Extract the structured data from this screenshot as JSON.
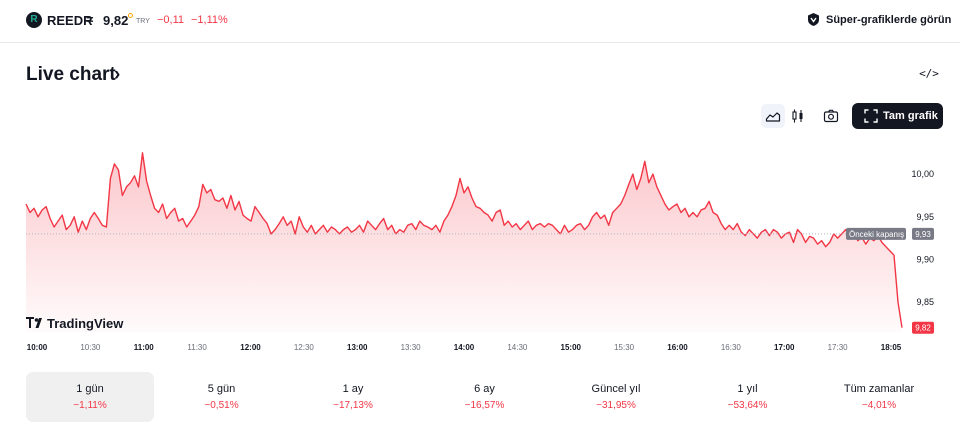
{
  "header": {
    "symbol_logo": "R",
    "symbol": "REEDR",
    "separator": "=",
    "price": "9,82",
    "currency": "TRY",
    "change": "−0,11",
    "change_percent": "−1,11%",
    "super_charts_label": "Süper-grafiklerde görün"
  },
  "section": {
    "title": "Live chart",
    "title_chevron": "›",
    "embed_icon": "</>"
  },
  "toolbar": {
    "fullscreen_label": "Tam grafik",
    "icons": [
      "area-chart-icon",
      "candles-icon",
      "camera-icon",
      "fullscreen-icon"
    ]
  },
  "colors": {
    "line": "#f23645",
    "negative": "#f23645",
    "accent_dark": "#131722"
  },
  "chart_data": {
    "type": "area",
    "watermark": "TradingView",
    "x_ticks": [
      "10:00",
      "10:30",
      "11:00",
      "11:30",
      "12:00",
      "12:30",
      "13:00",
      "13:30",
      "14:00",
      "14:30",
      "15:00",
      "15:30",
      "16:00",
      "16:30",
      "17:00",
      "17:30",
      "18:05"
    ],
    "x_ticks_bold": [
      "10:00",
      "11:00",
      "12:00",
      "13:00",
      "14:00",
      "15:00",
      "16:00",
      "17:00",
      "18:05"
    ],
    "y_ticks": [
      "10,00",
      "9,95",
      "9,90",
      "9,85"
    ],
    "ylim": [
      9.815,
      10.04
    ],
    "previous_close": 9.93,
    "previous_close_label": "Önceki kapanış",
    "previous_close_value": "9,93",
    "last_value": 9.82,
    "last_value_label": "9,82",
    "series": [
      {
        "values": [
          9.965,
          9.955,
          9.96,
          9.95,
          9.958,
          9.962,
          9.948,
          9.938,
          9.945,
          9.952,
          9.935,
          9.94,
          9.95,
          9.932,
          9.945,
          9.935,
          9.948,
          9.955,
          9.948,
          9.94,
          9.938,
          9.995,
          10.012,
          10.005,
          9.975,
          9.985,
          9.99,
          9.998,
          9.985,
          10.025,
          9.992,
          9.975,
          9.96,
          9.955,
          9.965,
          9.948,
          9.955,
          9.96,
          9.945,
          9.948,
          9.938,
          9.945,
          9.952,
          9.962,
          9.988,
          9.978,
          9.982,
          9.97,
          9.968,
          9.972,
          9.96,
          9.975,
          9.958,
          9.968,
          9.952,
          9.948,
          9.945,
          9.962,
          9.955,
          9.948,
          9.942,
          9.93,
          9.935,
          9.942,
          9.95,
          9.94,
          9.945,
          9.93,
          9.95,
          9.938,
          9.932,
          9.94,
          9.93,
          9.935,
          9.94,
          9.932,
          9.938,
          9.935,
          9.93,
          9.935,
          9.938,
          9.932,
          9.935,
          9.94,
          9.932,
          9.945,
          9.94,
          9.935,
          9.942,
          9.948,
          9.935,
          9.94,
          9.93,
          9.935,
          9.932,
          9.94,
          9.942,
          9.935,
          9.945,
          9.94,
          9.938,
          9.935,
          9.94,
          9.932,
          9.945,
          9.952,
          9.962,
          9.975,
          9.995,
          9.978,
          9.985,
          9.972,
          9.962,
          9.96,
          9.955,
          9.952,
          9.945,
          9.955,
          9.958,
          9.94,
          9.945,
          9.938,
          9.942,
          9.935,
          9.94,
          9.945,
          9.935,
          9.94,
          9.942,
          9.938,
          9.942,
          9.94,
          9.935,
          9.93,
          9.94,
          9.932,
          9.935,
          9.94,
          9.942,
          9.935,
          9.94,
          9.95,
          9.955,
          9.948,
          9.952,
          9.94,
          9.955,
          9.96,
          9.965,
          9.975,
          9.988,
          10.0,
          9.982,
          9.995,
          10.015,
          9.99,
          10.0,
          9.985,
          9.975,
          9.965,
          9.958,
          9.962,
          9.965,
          9.955,
          9.96,
          9.95,
          9.955,
          9.95,
          9.958,
          9.96,
          9.968,
          9.955,
          9.952,
          9.942,
          9.935,
          9.94,
          9.935,
          9.942,
          9.932,
          9.928,
          9.935,
          9.93,
          9.925,
          9.932,
          9.935,
          9.928,
          9.935,
          9.932,
          9.925,
          9.93,
          9.932,
          9.92,
          9.935,
          9.93,
          9.92,
          9.927,
          9.925,
          9.918,
          9.922,
          9.915,
          9.92,
          9.93,
          9.925,
          9.93,
          9.935,
          9.926,
          9.932,
          9.922,
          9.926,
          9.918,
          9.925,
          9.922,
          9.928,
          9.92,
          9.915,
          9.91,
          9.905,
          9.85,
          9.82
        ]
      }
    ]
  },
  "periods": [
    {
      "label": "1 gün",
      "value": "−1,11%",
      "active": true
    },
    {
      "label": "5 gün",
      "value": "−0,51%",
      "active": false
    },
    {
      "label": "1 ay",
      "value": "−17,13%",
      "active": false
    },
    {
      "label": "6 ay",
      "value": "−16,57%",
      "active": false
    },
    {
      "label": "Güncel yıl",
      "value": "−31,95%",
      "active": false
    },
    {
      "label": "1 yıl",
      "value": "−53,64%",
      "active": false
    },
    {
      "label": "Tüm zamanlar",
      "value": "−4,01%",
      "active": false
    }
  ]
}
